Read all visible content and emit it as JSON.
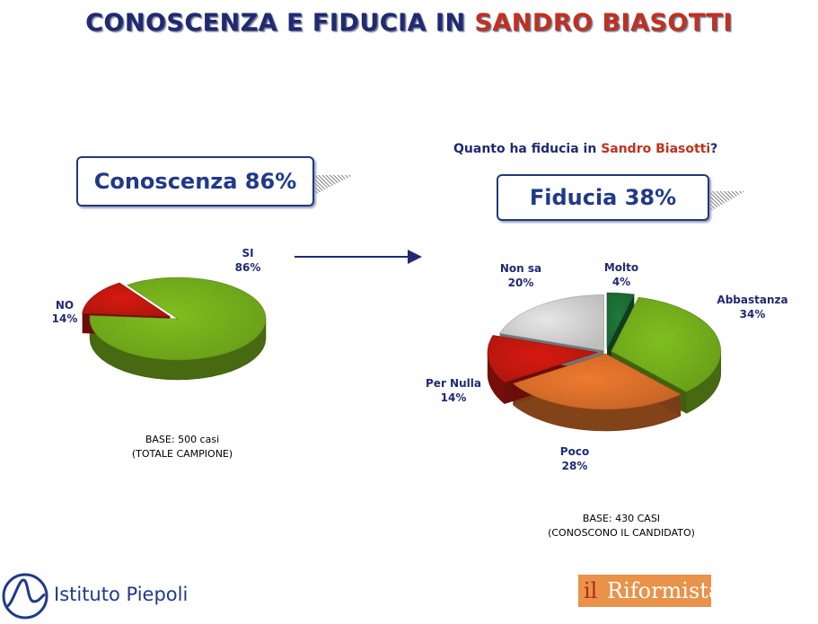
{
  "header": {
    "title_part1": "CONOSCENZA E FIDUCIA IN ",
    "title_part2": "SANDRO BIASOTTI"
  },
  "question": {
    "part1": "Quanto ha fiducia in ",
    "part2": "Sandro Biasotti",
    "part3": "?"
  },
  "boxes": {
    "conoscenza": "Conoscenza 86%",
    "fiducia": "Fiducia 38%"
  },
  "bases": {
    "left_line1": "BASE: 500 casi",
    "left_line2": "(TOTALE CAMPIONE)",
    "right_line1": "BASE: 430 CASI",
    "right_line2": "(CONOSCONO IL CANDIDATO)"
  },
  "logos": {
    "piepoli": "Istituto Piepoli",
    "riformista_il": "il",
    "riformista_name": "Riformista"
  },
  "colors": {
    "navy": "#1f2a72",
    "accent_red": "#c0311f",
    "green": "#7fbf1e",
    "dark_green": "#1e7a3a",
    "orange": "#ef7a2e",
    "red": "#d61a10",
    "light_gray": "#e6e6e6"
  },
  "chart_data": [
    {
      "type": "pie",
      "title": "",
      "slices": [
        {
          "label": "SI",
          "value": 86,
          "value_label": "86%",
          "color": "#7fbf1e"
        },
        {
          "label": "NO",
          "value": 14,
          "value_label": "14%",
          "color": "#d61a10"
        }
      ]
    },
    {
      "type": "pie",
      "title": "Quanto ha fiducia in Sandro Biasotti?",
      "slices": [
        {
          "label": "Molto",
          "value": 4,
          "value_label": "4%",
          "color": "#1e7a3a"
        },
        {
          "label": "Abbastanza",
          "value": 34,
          "value_label": "34%",
          "color": "#7fbf1e"
        },
        {
          "label": "Poco",
          "value": 28,
          "value_label": "28%",
          "color": "#ef7a2e"
        },
        {
          "label": "Per Nulla",
          "value": 14,
          "value_label": "14%",
          "color": "#d61a10"
        },
        {
          "label": "Non sa",
          "value": 20,
          "value_label": "20%",
          "color": "#e6e6e6"
        }
      ]
    }
  ]
}
